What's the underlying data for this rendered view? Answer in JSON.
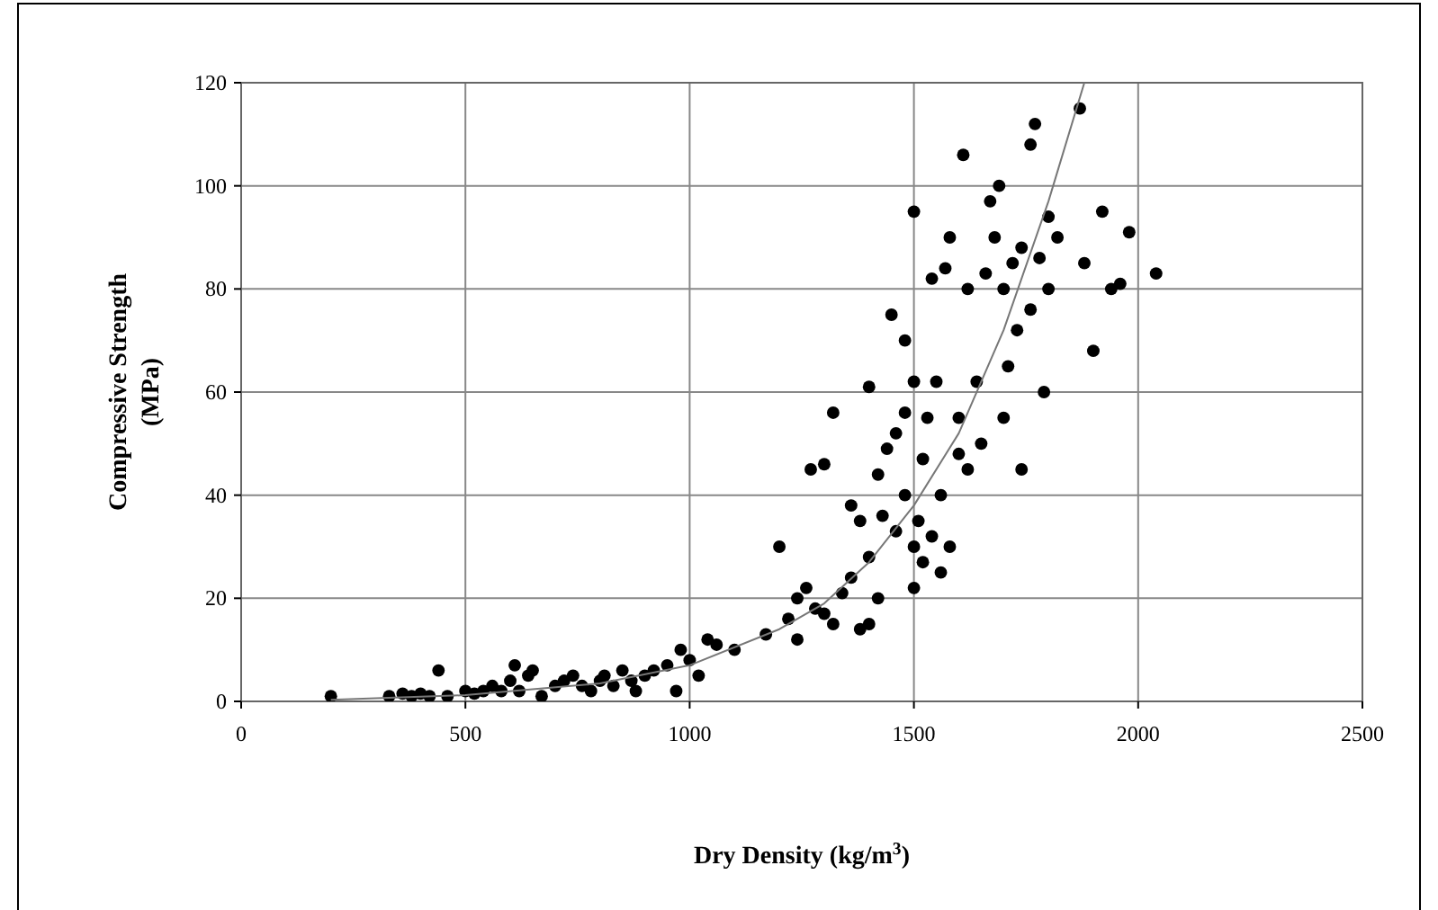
{
  "chart_data": {
    "type": "scatter",
    "xlabel": "Dry Density (kg/m$^{3}$)",
    "ylabel": "Compressive Strength (MPa)",
    "xlim": [
      0,
      2500
    ],
    "ylim": [
      0,
      120
    ],
    "xticks": [
      0,
      500,
      1000,
      1500,
      2000,
      2500
    ],
    "yticks": [
      0,
      20,
      40,
      60,
      80,
      100,
      120
    ],
    "grid": true,
    "marker": "circle",
    "series": [
      {
        "color": "#000000",
        "x": [
          200,
          330,
          360,
          380,
          400,
          420,
          440,
          460,
          500,
          520,
          540,
          560,
          580,
          600,
          610,
          620,
          640,
          650,
          670,
          700,
          720,
          740,
          760,
          780,
          800,
          810,
          830,
          850,
          870,
          880,
          900,
          920,
          950,
          970,
          980,
          1000,
          1020,
          1040,
          1060,
          1100,
          1170,
          1200,
          1220,
          1240,
          1240,
          1260,
          1270,
          1280,
          1300,
          1300,
          1320,
          1320,
          1340,
          1360,
          1360,
          1380,
          1380,
          1400,
          1400,
          1400,
          1420,
          1420,
          1430,
          1440,
          1450,
          1460,
          1460,
          1480,
          1480,
          1480,
          1500,
          1500,
          1500,
          1500,
          1510,
          1520,
          1520,
          1530,
          1540,
          1540,
          1550,
          1560,
          1560,
          1570,
          1580,
          1580,
          1600,
          1600,
          1610,
          1620,
          1620,
          1640,
          1650,
          1660,
          1670,
          1680,
          1690,
          1700,
          1700,
          1710,
          1720,
          1730,
          1740,
          1740,
          1760,
          1760,
          1770,
          1780,
          1790,
          1800,
          1800,
          1820,
          1870,
          1880,
          1900,
          1920,
          1940,
          1960,
          1980,
          2040
        ],
        "values": [
          1,
          1,
          1.5,
          1,
          1.5,
          1,
          6,
          1,
          2,
          1.5,
          2,
          3,
          2,
          4,
          7,
          2,
          5,
          6,
          1,
          3,
          4,
          5,
          3,
          2,
          4,
          5,
          3,
          6,
          4,
          2,
          5,
          6,
          7,
          2,
          10,
          8,
          5,
          12,
          11,
          10,
          13,
          30,
          16,
          12,
          20,
          22,
          45,
          18,
          46,
          17,
          15,
          56,
          21,
          38,
          24,
          14,
          35,
          15,
          28,
          61,
          44,
          20,
          36,
          49,
          75,
          52,
          33,
          40,
          70,
          56,
          95,
          22,
          30,
          62,
          35,
          27,
          47,
          55,
          82,
          32,
          62,
          25,
          40,
          84,
          30,
          90,
          48,
          55,
          106,
          45,
          80,
          62,
          50,
          83,
          97,
          90,
          100,
          80,
          55,
          65,
          85,
          72,
          45,
          88,
          108,
          76,
          112,
          86,
          60,
          80,
          94,
          90,
          115,
          85,
          68,
          95,
          80,
          81,
          91,
          83
        ]
      },
      {
        "type": "line",
        "color": "#777777",
        "marker": "none",
        "x": [
          200,
          500,
          800,
          1000,
          1200,
          1300,
          1400,
          1500,
          1600,
          1700,
          1800,
          1880
        ],
        "values": [
          0.3,
          1.2,
          3.5,
          7,
          14,
          19,
          27,
          38,
          52,
          72,
          97,
          120
        ]
      }
    ]
  }
}
